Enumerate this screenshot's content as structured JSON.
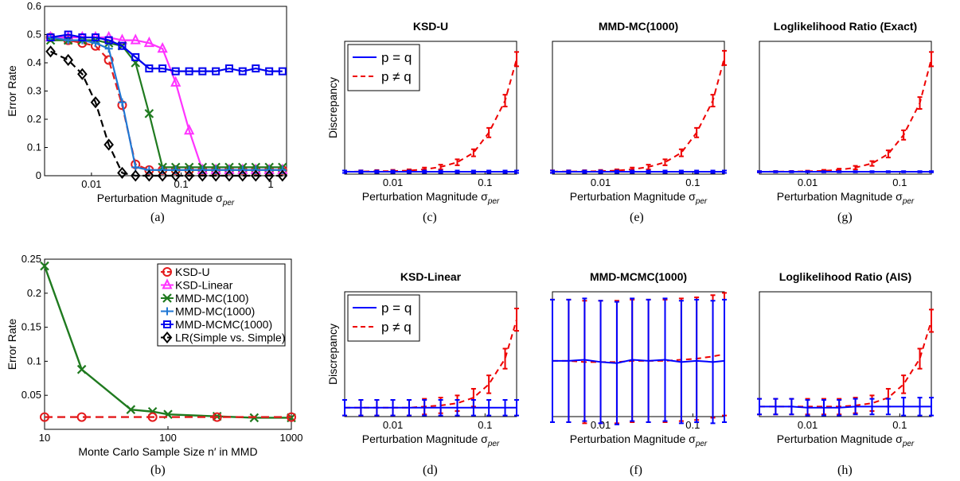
{
  "figure": {
    "captions": [
      "(a)",
      "(b)",
      "(c)",
      "(d)",
      "(e)",
      "(f)",
      "(g)",
      "(h)"
    ]
  },
  "colors": {
    "ksd_u": "#e41a1c",
    "ksd_linear": "#ff33ff",
    "mmd_mc100": "#1f7a1f",
    "mmd_mc1000": "#1f77d4",
    "mmd_mcmc1000": "#0000ee",
    "lr": "#000000",
    "p_eq_q": "#0000ff",
    "p_neq_q": "#ee0000"
  },
  "chart_data": [
    {
      "id": "a",
      "type": "line",
      "title": "",
      "xlabel": "Perturbation Magnitude σ_per",
      "ylabel": "Error Rate",
      "xscale": "log",
      "xlim": [
        0.003,
        1.5
      ],
      "ylim": [
        0,
        0.6
      ],
      "xticks": [
        0.01,
        0.1,
        1
      ],
      "xtick_labels": [
        "0.01",
        "0.1",
        "1"
      ],
      "yticks": [
        0,
        0.1,
        0.2,
        0.3,
        0.4,
        0.5,
        0.6
      ],
      "ytick_labels": [
        "0",
        "0.1",
        "0.2",
        "0.3",
        "0.4",
        "0.5",
        "0.6"
      ],
      "legend": "none",
      "x": [
        0.0035,
        0.0055,
        0.0079,
        0.0111,
        0.0156,
        0.022,
        0.031,
        0.044,
        0.062,
        0.087,
        0.123,
        0.173,
        0.244,
        0.344,
        0.485,
        0.68,
        0.96,
        1.35
      ],
      "series": [
        {
          "key": "ksd_u",
          "values": [
            0.49,
            0.48,
            0.47,
            0.46,
            0.41,
            0.25,
            0.04,
            0.02,
            0.02,
            0.02,
            0.02,
            0.02,
            0.02,
            0.02,
            0.02,
            0.02,
            0.02,
            0.02
          ],
          "marker": "circle",
          "dash": "long"
        },
        {
          "key": "ksd_linear",
          "values": [
            0.49,
            0.49,
            0.49,
            0.49,
            0.49,
            0.48,
            0.48,
            0.47,
            0.45,
            0.33,
            0.16,
            0.02,
            0.02,
            0.02,
            0.02,
            0.02,
            0.02,
            0.02
          ],
          "marker": "triangle",
          "dash": "solid"
        },
        {
          "key": "mmd_mc100",
          "values": [
            0.48,
            0.48,
            0.48,
            0.48,
            0.47,
            0.46,
            0.4,
            0.22,
            0.03,
            0.03,
            0.03,
            0.03,
            0.03,
            0.03,
            0.03,
            0.03,
            0.03,
            0.03
          ],
          "marker": "x",
          "dash": "solid"
        },
        {
          "key": "mmd_mc1000",
          "values": [
            0.49,
            0.48,
            0.48,
            0.47,
            0.45,
            0.26,
            0.03,
            0.02,
            0.02,
            0.02,
            0.02,
            0.02,
            0.02,
            0.02,
            0.02,
            0.02,
            0.02,
            0.02
          ],
          "marker": "plus",
          "dash": "solid"
        },
        {
          "key": "mmd_mcmc1000",
          "values": [
            0.49,
            0.5,
            0.49,
            0.49,
            0.48,
            0.46,
            0.42,
            0.38,
            0.38,
            0.37,
            0.37,
            0.37,
            0.37,
            0.38,
            0.37,
            0.38,
            0.37,
            0.37
          ],
          "marker": "square",
          "dash": "solid"
        },
        {
          "key": "lr",
          "values": [
            0.44,
            0.41,
            0.36,
            0.26,
            0.11,
            0.01,
            0.0,
            0.0,
            0.0,
            0.0,
            0.0,
            0.0,
            0.0,
            0.0,
            0.0,
            0.0,
            0.0,
            0.0
          ],
          "marker": "diamond",
          "dash": "long"
        }
      ]
    },
    {
      "id": "b",
      "type": "line",
      "title": "",
      "xlabel": "Monte Carlo Sample Size n′ in MMD",
      "ylabel": "Error Rate",
      "xscale": "log",
      "xlim": [
        10,
        1000
      ],
      "ylim": [
        0,
        0.25
      ],
      "xticks": [
        10,
        100,
        1000
      ],
      "xtick_labels": [
        "10",
        "100",
        "1000"
      ],
      "yticks": [
        0.05,
        0.1,
        0.15,
        0.2,
        0.25
      ],
      "ytick_labels": [
        "0.05",
        "0.1",
        "0.15",
        "0.2",
        "0.25"
      ],
      "legend": "top-right",
      "series_names": {
        "ksd_u": "KSD-U",
        "ksd_linear": "KSD-Linear",
        "mmd_mc100": "MMD-MC(100)",
        "mmd_mc1000": "MMD-MC(1000)",
        "mmd_mcmc1000": "MMD-MCMC(1000)",
        "lr": "LR(Simple vs. Simple)"
      },
      "series": [
        {
          "key": "mmd_mc100",
          "x": [
            10,
            20,
            50,
            75,
            100,
            250,
            500,
            1000
          ],
          "values": [
            0.24,
            0.088,
            0.029,
            0.026,
            0.022,
            0.019,
            0.017,
            0.017
          ],
          "marker": "x",
          "dash": "solid"
        },
        {
          "key": "ksd_u",
          "x": [
            10,
            20,
            75,
            250,
            1000
          ],
          "values": [
            0.018,
            0.018,
            0.018,
            0.018,
            0.018
          ],
          "marker": "circle",
          "dash": "long"
        }
      ]
    },
    {
      "id": "c",
      "type": "line",
      "title": "KSD-U",
      "xlabel": "Perturbation Magnitude σ_per",
      "ylabel": "Discrepancy",
      "xscale": "log",
      "xlim": [
        0.003,
        0.22
      ],
      "ylim": [
        -0.02,
        1.1
      ],
      "yticks_hidden": true,
      "xticks": [
        0.01,
        0.1
      ],
      "xtick_labels": [
        "0.01",
        "0.1"
      ],
      "legend": "top-left",
      "series_names": {
        "eq": "p = q",
        "neq": "p ≠ q"
      },
      "x": [
        0.003,
        0.0045,
        0.0067,
        0.01,
        0.015,
        0.022,
        0.033,
        0.05,
        0.075,
        0.11,
        0.165,
        0.22
      ],
      "series": [
        {
          "key": "eq",
          "values": [
            0,
            0,
            0,
            0,
            0,
            0,
            0,
            0,
            0,
            0,
            0,
            0
          ],
          "err": [
            0.01,
            0.01,
            0.01,
            0.01,
            0.01,
            0.01,
            0.01,
            0.01,
            0.01,
            0.01,
            0.01,
            0.01
          ]
        },
        {
          "key": "neq",
          "values": [
            0,
            0.002,
            0.004,
            0.006,
            0.01,
            0.02,
            0.04,
            0.08,
            0.16,
            0.33,
            0.6,
            0.95
          ],
          "err": [
            0.01,
            0.01,
            0.01,
            0.01,
            0.01,
            0.015,
            0.02,
            0.025,
            0.03,
            0.04,
            0.05,
            0.06
          ]
        }
      ]
    },
    {
      "id": "d",
      "type": "line",
      "title": "KSD-Linear",
      "xlabel": "Perturbation Magnitude σ_per",
      "ylabel": "Discrepancy",
      "xscale": "log",
      "xlim": [
        0.003,
        0.22
      ],
      "ylim": [
        -0.02,
        1.1
      ],
      "yticks_hidden": true,
      "xticks": [
        0.01,
        0.1
      ],
      "xtick_labels": [
        "0.01",
        "0.1"
      ],
      "legend": "top-left",
      "series_names": {
        "eq": "p = q",
        "neq": "p ≠ q"
      },
      "x": [
        0.003,
        0.0045,
        0.0067,
        0.01,
        0.015,
        0.022,
        0.033,
        0.05,
        0.075,
        0.11,
        0.165,
        0.22
      ],
      "series": [
        {
          "key": "eq",
          "values": [
            0.06,
            0.06,
            0.06,
            0.06,
            0.06,
            0.06,
            0.06,
            0.06,
            0.06,
            0.06,
            0.06,
            0.06
          ],
          "err": [
            0.07,
            0.07,
            0.07,
            0.07,
            0.07,
            0.07,
            0.07,
            0.07,
            0.07,
            0.07,
            0.07,
            0.07
          ]
        },
        {
          "key": "neq",
          "values": [
            0.06,
            0.06,
            0.06,
            0.06,
            0.06,
            0.07,
            0.08,
            0.1,
            0.15,
            0.27,
            0.5,
            0.85
          ],
          "err": [
            0.07,
            0.07,
            0.07,
            0.07,
            0.07,
            0.07,
            0.07,
            0.07,
            0.08,
            0.08,
            0.09,
            0.1
          ]
        }
      ]
    },
    {
      "id": "e",
      "type": "line",
      "title": "MMD-MC(1000)",
      "xlabel": "Perturbation Magnitude σ_per",
      "ylabel": "",
      "xscale": "log",
      "xlim": [
        0.003,
        0.22
      ],
      "ylim": [
        -0.02,
        1.1
      ],
      "yticks_hidden": true,
      "xticks": [
        0.01,
        0.1
      ],
      "xtick_labels": [
        "0.01",
        "0.1"
      ],
      "legend": "none",
      "x": [
        0.003,
        0.0045,
        0.0067,
        0.01,
        0.015,
        0.022,
        0.033,
        0.05,
        0.075,
        0.11,
        0.165,
        0.22
      ],
      "series": [
        {
          "key": "eq",
          "values": [
            0,
            0,
            0,
            0,
            0,
            0,
            0,
            0,
            0,
            0,
            0,
            0
          ],
          "err": [
            0.01,
            0.01,
            0.01,
            0.01,
            0.01,
            0.01,
            0.01,
            0.01,
            0.01,
            0.01,
            0.01,
            0.01
          ]
        },
        {
          "key": "neq",
          "values": [
            0.002,
            0.002,
            0.003,
            0.005,
            0.01,
            0.02,
            0.04,
            0.08,
            0.16,
            0.33,
            0.6,
            0.96
          ],
          "err": [
            0.01,
            0.01,
            0.01,
            0.01,
            0.01,
            0.015,
            0.02,
            0.025,
            0.03,
            0.04,
            0.05,
            0.06
          ]
        }
      ]
    },
    {
      "id": "f",
      "type": "line",
      "title": "MMD-MCMC(1000)",
      "xlabel": "Perturbation Magnitude σ_per",
      "ylabel": "",
      "xscale": "log",
      "xlim": [
        0.003,
        0.22
      ],
      "ylim": [
        -0.02,
        1.1
      ],
      "yticks_hidden": true,
      "xticks": [
        0.01,
        0.1
      ],
      "xtick_labels": [
        "0.01",
        "0.1"
      ],
      "legend": "none",
      "x": [
        0.003,
        0.0045,
        0.0067,
        0.01,
        0.015,
        0.022,
        0.033,
        0.05,
        0.075,
        0.11,
        0.165,
        0.22
      ],
      "series": [
        {
          "key": "eq",
          "values": [
            0.48,
            0.48,
            0.49,
            0.47,
            0.46,
            0.49,
            0.48,
            0.49,
            0.47,
            0.48,
            0.47,
            0.48
          ],
          "err": [
            0.55,
            0.55,
            0.55,
            0.55,
            0.55,
            0.55,
            0.55,
            0.55,
            0.55,
            0.55,
            0.55,
            0.55
          ]
        },
        {
          "key": "neq",
          "values": [
            0.48,
            0.48,
            0.47,
            0.47,
            0.47,
            0.48,
            0.48,
            0.48,
            0.49,
            0.5,
            0.52,
            0.54
          ],
          "err": [
            0.55,
            0.55,
            0.55,
            0.55,
            0.55,
            0.55,
            0.55,
            0.55,
            0.55,
            0.55,
            0.55,
            0.55
          ]
        }
      ]
    },
    {
      "id": "g",
      "type": "line",
      "title": "Loglikelihood Ratio (Exact)",
      "xlabel": "Perturbation Magnitude σ_per",
      "ylabel": "",
      "xscale": "log",
      "xlim": [
        0.003,
        0.22
      ],
      "ylim": [
        -0.02,
        1.1
      ],
      "yticks_hidden": true,
      "xticks": [
        0.01,
        0.1
      ],
      "xtick_labels": [
        "0.01",
        "0.1"
      ],
      "legend": "none",
      "x": [
        0.003,
        0.0045,
        0.0067,
        0.01,
        0.015,
        0.022,
        0.033,
        0.05,
        0.075,
        0.11,
        0.165,
        0.22
      ],
      "series": [
        {
          "key": "eq",
          "values": [
            0,
            0,
            0,
            0,
            0,
            0,
            0,
            0,
            0,
            0,
            0,
            0
          ],
          "err": [
            0.005,
            0.005,
            0.005,
            0.005,
            0.005,
            0.005,
            0.005,
            0.005,
            0.005,
            0.005,
            0.005,
            0.005
          ]
        },
        {
          "key": "neq",
          "values": [
            0,
            0.001,
            0.002,
            0.004,
            0.008,
            0.016,
            0.035,
            0.07,
            0.15,
            0.31,
            0.58,
            0.95
          ],
          "err": [
            0.005,
            0.005,
            0.005,
            0.005,
            0.008,
            0.01,
            0.015,
            0.02,
            0.03,
            0.04,
            0.05,
            0.06
          ]
        }
      ]
    },
    {
      "id": "h",
      "type": "line",
      "title": "Loglikelihood Ratio (AIS)",
      "xlabel": "Perturbation Magnitude σ_per",
      "ylabel": "",
      "xscale": "log",
      "xlim": [
        0.003,
        0.22
      ],
      "ylim": [
        -0.02,
        1.1
      ],
      "yticks_hidden": true,
      "xticks": [
        0.01,
        0.1
      ],
      "xtick_labels": [
        "0.01",
        "0.1"
      ],
      "legend": "none",
      "x": [
        0.003,
        0.0045,
        0.0067,
        0.01,
        0.015,
        0.022,
        0.033,
        0.05,
        0.075,
        0.11,
        0.165,
        0.22
      ],
      "series": [
        {
          "key": "eq",
          "values": [
            0.07,
            0.07,
            0.07,
            0.06,
            0.06,
            0.06,
            0.07,
            0.07,
            0.07,
            0.07,
            0.07,
            0.07
          ],
          "err": [
            0.07,
            0.07,
            0.07,
            0.07,
            0.07,
            0.07,
            0.07,
            0.07,
            0.07,
            0.08,
            0.08,
            0.08
          ]
        },
        {
          "key": "neq",
          "values": [
            0.07,
            0.07,
            0.07,
            0.07,
            0.07,
            0.07,
            0.08,
            0.1,
            0.15,
            0.27,
            0.5,
            0.84
          ],
          "err": [
            0.07,
            0.07,
            0.07,
            0.07,
            0.07,
            0.07,
            0.07,
            0.07,
            0.08,
            0.08,
            0.09,
            0.1
          ]
        }
      ]
    }
  ]
}
